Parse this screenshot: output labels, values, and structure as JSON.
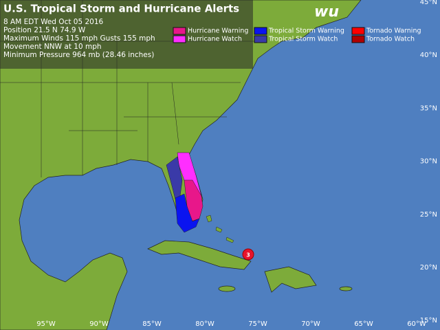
{
  "header": {
    "title": "U.S. Tropical Storm and Hurricane Alerts",
    "lines": [
      "8 AM EDT Wed Oct 05 2016",
      "Position 21.5 N 74.9 W",
      "Maximum Winds 115 mph  Gusts 155 mph",
      "Movement NNW at 10 mph",
      "Minimum Pressure 964 mb (28.46 inches)"
    ]
  },
  "logo": "wu",
  "legend": [
    {
      "label": "Hurricane Warning",
      "color": "#e8178a"
    },
    {
      "label": "Hurricane Watch",
      "color": "#ff2eff"
    },
    {
      "label": "Tropical Storm Warning",
      "color": "#0a14f0"
    },
    {
      "label": "Tropical Storm Watch",
      "color": "#3a3aa8"
    },
    {
      "label": "Tornado Warning",
      "color": "#ff0000"
    },
    {
      "label": "Tornado Watch",
      "color": "#b00000"
    }
  ],
  "storm": {
    "label": "3"
  },
  "lat_labels": [
    "45°N",
    "40°N",
    "35°N",
    "30°N",
    "25°N",
    "20°N",
    "15°N"
  ],
  "lon_labels": [
    "95°W",
    "90°W",
    "85°W",
    "80°W",
    "75°W",
    "70°W",
    "65°W",
    "60°W"
  ]
}
